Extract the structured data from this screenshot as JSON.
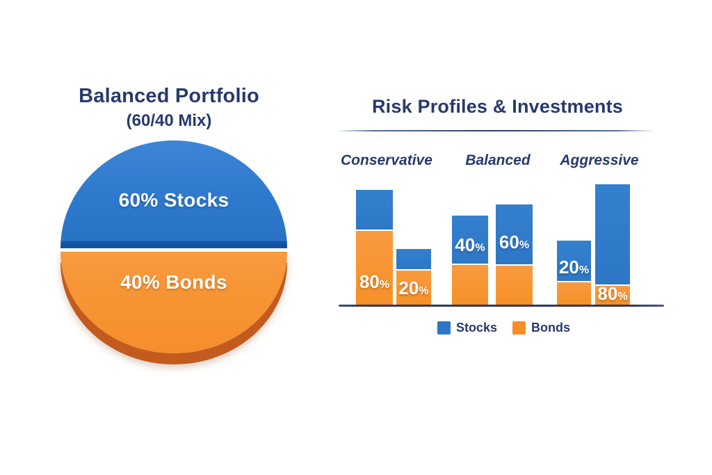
{
  "colors": {
    "stocks_blue": "#2d77c5",
    "bonds_orange": "#f79433",
    "pie_blue_edge": "#1256a7",
    "pie_orange_rim": "#c25b1d",
    "navy_text": "#263a6d",
    "axis_line": "#2c3a5f",
    "background": "#ffffff"
  },
  "pie_section": {
    "title": "Balanced Portfolio",
    "subtitle": "(60/40 Mix)",
    "slices": [
      {
        "name": "Stocks",
        "label": "60% Stocks",
        "value": 60
      },
      {
        "name": "Bonds",
        "label": "40% Bonds",
        "value": 40
      }
    ]
  },
  "bar_section": {
    "title": "Risk Profiles & Investments",
    "column_headers": [
      "Conservative",
      "Balanced",
      "Aggressive"
    ],
    "bars": [
      {
        "number": "80",
        "percent": "%"
      },
      {
        "number": "20",
        "percent": "%"
      },
      {
        "number": "40",
        "percent": "%"
      },
      {
        "number": "60",
        "percent": "%"
      },
      {
        "number": "20",
        "percent": "%"
      },
      {
        "number": "80",
        "percent": "%"
      }
    ],
    "legend": [
      {
        "label": "Stocks"
      },
      {
        "label": "Bonds"
      }
    ]
  },
  "chart_data": [
    {
      "type": "pie",
      "title": "Balanced Portfolio (60/40 Mix)",
      "slices": [
        {
          "label": "Stocks",
          "value": 60,
          "color": "#2e79cd"
        },
        {
          "label": "Bonds",
          "value": 40,
          "color": "#f79433"
        }
      ],
      "style": "3d, horizontal split, stocks top / bonds bottom, labels inside slices"
    },
    {
      "type": "bar",
      "title": "Risk Profiles & Investments",
      "categories": [
        "Conservative",
        "Balanced",
        "Aggressive"
      ],
      "series": [
        {
          "name": "Stocks",
          "color": "#2d77c5",
          "values": [
            20,
            60,
            80
          ]
        },
        {
          "name": "Bonds",
          "color": "#f79433",
          "values": [
            80,
            40,
            20
          ]
        }
      ],
      "bar_labels_left_to_right": [
        "80%",
        "20%",
        "40%",
        "60%",
        "20%",
        "80%"
      ],
      "xlabel": "",
      "ylabel": "",
      "ylim": [
        0,
        100
      ],
      "grid": false,
      "legend_position": "bottom",
      "note": "two stacked blue/orange bars per risk profile; percentage labels printed in white inside bars"
    }
  ]
}
